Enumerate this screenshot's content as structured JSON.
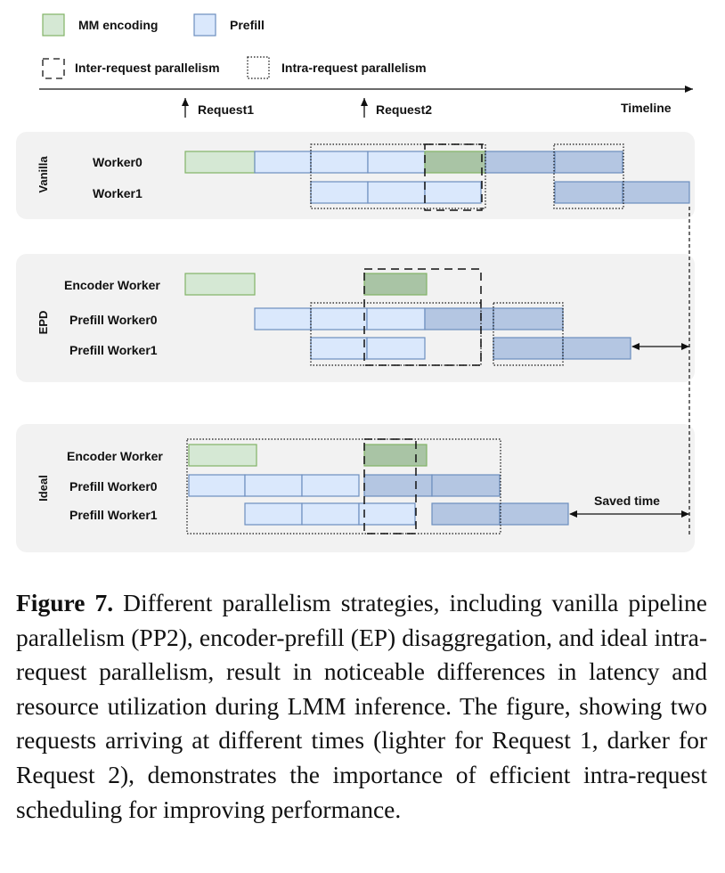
{
  "legend": {
    "mm_encoding": "MM encoding",
    "prefill": "Prefill",
    "inter": "Inter-request parallelism",
    "intra": "Intra-request parallelism"
  },
  "timeline": {
    "request1": "Request1",
    "request2": "Request2",
    "label": "Timeline"
  },
  "sections": {
    "vanilla": {
      "label": "Vanilla",
      "rows": [
        "Worker0",
        "Worker1"
      ]
    },
    "epd": {
      "label": "EPD",
      "rows": [
        "Encoder Worker",
        "Prefill Worker0",
        "Prefill Worker1"
      ]
    },
    "ideal": {
      "label": "Ideal",
      "rows": [
        "Encoder Worker",
        "Prefill Worker0",
        "Prefill Worker1"
      ]
    }
  },
  "saved_time": "Saved time",
  "caption": {
    "fig_label": "Figure 7.",
    "text": "Different parallelism strategies, including vanilla pipeline parallelism (PP2), encoder-prefill (EP) disaggrega­tion, and ideal intra-request parallelism, result in noticeable differences in latency and resource utilization during LMM inference. The figure, showing two requests arriving at dif­ferent times (lighter for Request 1, darker for Request 2), demonstrates the importance of efficient intra-request sched­uling for improving performance."
  },
  "colors": {
    "mm_light": "#d5e8d4",
    "mm_dark": "#a9c4a5",
    "mm_stroke": "#82b366",
    "prefill_light": "#dae8fc",
    "prefill_dark": "#b4c6e2",
    "prefill_stroke": "#6c8ebf",
    "panel": "#f2f2f2"
  }
}
